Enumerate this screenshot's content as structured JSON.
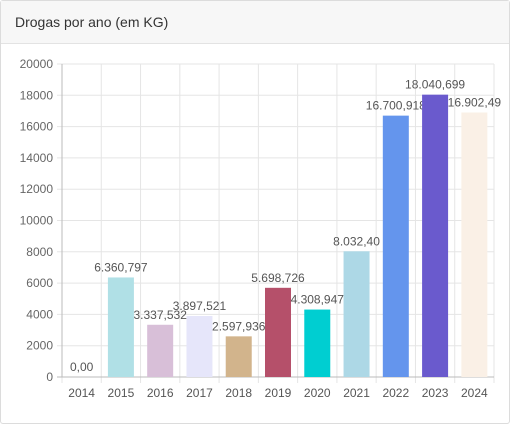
{
  "card": {
    "title": "Drogas por ano (em KG)"
  },
  "chart_data": {
    "type": "bar",
    "categories": [
      "2014",
      "2015",
      "2016",
      "2017",
      "2018",
      "2019",
      "2020",
      "2021",
      "2022",
      "2023",
      "2024"
    ],
    "values": [
      0,
      6360.797,
      3337.532,
      3897.521,
      2597.936,
      5698.726,
      4308.947,
      8032.4,
      16700.918,
      18040.699,
      16902.49
    ],
    "data_labels": [
      "0,00",
      "6.360,797",
      "3.337,532",
      "3.897,521",
      "2.597,936",
      "5.698,726",
      "4.308,947",
      "8.032,40",
      "16.700,918",
      "18.040,699",
      "16.902,49"
    ],
    "colors": [
      "#b0e0e6",
      "#b0e0e6",
      "#d8bfd8",
      "#e6e6fa",
      "#d2b48c",
      "#b5506a",
      "#00ced1",
      "#add8e6",
      "#6495ed",
      "#6a5acd",
      "#faf0e6"
    ],
    "ylim": [
      0,
      20000
    ],
    "yticks": [
      0,
      2000,
      4000,
      6000,
      8000,
      10000,
      12000,
      14000,
      16000,
      18000,
      20000
    ],
    "grid": true,
    "title": "",
    "xlabel": "",
    "ylabel": ""
  }
}
